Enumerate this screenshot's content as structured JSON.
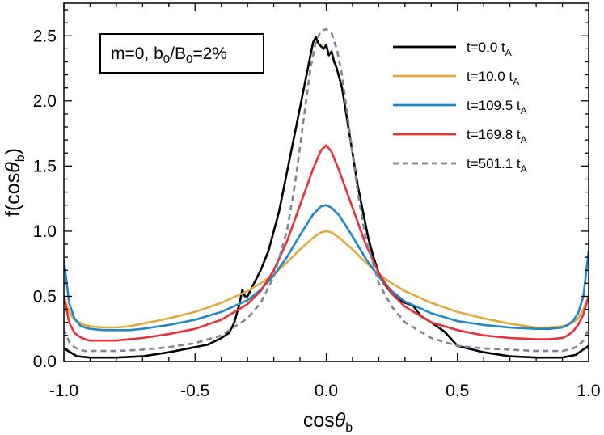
{
  "chart_data": {
    "type": "line",
    "title": "",
    "xlabel": {
      "base": "cos",
      "greek": "θ",
      "sub": "b"
    },
    "ylabel": {
      "pre": "f(cos",
      "greek": "θ",
      "sub": "b",
      "post": ")"
    },
    "xlim": [
      -1.0,
      1.0
    ],
    "ylim": [
      0.0,
      2.75
    ],
    "x_ticks": [
      {
        "value": -1.0,
        "label": "-1.0"
      },
      {
        "value": -0.5,
        "label": "-0.5"
      },
      {
        "value": 0.0,
        "label": "0.0"
      },
      {
        "value": 0.5,
        "label": "0.5"
      },
      {
        "value": 1.0,
        "label": "1.0"
      }
    ],
    "y_ticks": [
      {
        "value": 0.0,
        "label": "0.0"
      },
      {
        "value": 0.5,
        "label": "0.5"
      },
      {
        "value": 1.0,
        "label": "1.0"
      },
      {
        "value": 1.5,
        "label": "1.5"
      },
      {
        "value": 2.0,
        "label": "2.0"
      },
      {
        "value": 2.5,
        "label": "2.5"
      }
    ],
    "grid": false,
    "annotation": {
      "parts": [
        "m=0, b",
        "0",
        "/B",
        "0",
        "=2%"
      ]
    },
    "legend_position": "top-right",
    "series": [
      {
        "name": "t=0.0 t_A",
        "label": {
          "text": "t=0.0 t",
          "sub": "A"
        },
        "color": "#000000",
        "dash": "",
        "x": [
          -1.0,
          -0.95,
          -0.9,
          -0.8,
          -0.7,
          -0.6,
          -0.5,
          -0.45,
          -0.4,
          -0.37,
          -0.35,
          -0.33,
          -0.32,
          -0.31,
          -0.3,
          -0.28,
          -0.25,
          -0.22,
          -0.2,
          -0.18,
          -0.16,
          -0.14,
          -0.12,
          -0.1,
          -0.08,
          -0.06,
          -0.05,
          -0.04,
          -0.03,
          -0.02,
          -0.01,
          0.0,
          0.01,
          0.02,
          0.03,
          0.04,
          0.06,
          0.08,
          0.1,
          0.12,
          0.14,
          0.16,
          0.18,
          0.2,
          0.22,
          0.25,
          0.28,
          0.3,
          0.33,
          0.36,
          0.4,
          0.45,
          0.5,
          0.6,
          0.7,
          0.8,
          0.9,
          0.95,
          1.0
        ],
        "y": [
          0.1,
          0.04,
          0.03,
          0.03,
          0.04,
          0.07,
          0.11,
          0.13,
          0.18,
          0.22,
          0.3,
          0.45,
          0.55,
          0.5,
          0.5,
          0.58,
          0.7,
          0.85,
          1.0,
          1.15,
          1.35,
          1.55,
          1.75,
          1.95,
          2.15,
          2.35,
          2.45,
          2.49,
          2.44,
          2.42,
          2.4,
          2.43,
          2.35,
          2.38,
          2.3,
          2.25,
          2.1,
          1.85,
          1.6,
          1.35,
          1.15,
          0.95,
          0.8,
          0.68,
          0.6,
          0.52,
          0.47,
          0.45,
          0.43,
          0.35,
          0.3,
          0.23,
          0.12,
          0.07,
          0.04,
          0.03,
          0.03,
          0.05,
          0.12
        ]
      },
      {
        "name": "t=10.0 t_A",
        "label": {
          "text": "t=10.0 t",
          "sub": "A"
        },
        "color": "#E0AA3E",
        "dash": "",
        "x": [
          -1.0,
          -0.98,
          -0.96,
          -0.94,
          -0.92,
          -0.9,
          -0.85,
          -0.8,
          -0.75,
          -0.7,
          -0.6,
          -0.5,
          -0.4,
          -0.3,
          -0.25,
          -0.2,
          -0.15,
          -0.1,
          -0.05,
          -0.02,
          0.0,
          0.02,
          0.05,
          0.1,
          0.15,
          0.2,
          0.25,
          0.3,
          0.4,
          0.5,
          0.6,
          0.7,
          0.8,
          0.85,
          0.9,
          0.92,
          0.94,
          0.96,
          0.98,
          1.0
        ],
        "y": [
          0.5,
          0.38,
          0.32,
          0.3,
          0.28,
          0.27,
          0.26,
          0.26,
          0.27,
          0.29,
          0.33,
          0.38,
          0.45,
          0.54,
          0.6,
          0.67,
          0.76,
          0.86,
          0.95,
          0.99,
          1.0,
          0.99,
          0.95,
          0.86,
          0.76,
          0.67,
          0.6,
          0.54,
          0.45,
          0.38,
          0.33,
          0.29,
          0.26,
          0.26,
          0.27,
          0.28,
          0.3,
          0.33,
          0.4,
          0.5
        ]
      },
      {
        "name": "t=109.5 t_A",
        "label": {
          "text": "t=109.5 t",
          "sub": "A"
        },
        "color": "#1F86C7",
        "dash": "",
        "x": [
          -1.0,
          -0.98,
          -0.96,
          -0.94,
          -0.92,
          -0.9,
          -0.85,
          -0.8,
          -0.75,
          -0.7,
          -0.6,
          -0.5,
          -0.4,
          -0.3,
          -0.25,
          -0.2,
          -0.15,
          -0.1,
          -0.05,
          -0.02,
          0.0,
          0.02,
          0.05,
          0.1,
          0.15,
          0.2,
          0.25,
          0.3,
          0.4,
          0.5,
          0.6,
          0.7,
          0.8,
          0.85,
          0.9,
          0.92,
          0.94,
          0.96,
          0.98,
          1.0
        ],
        "y": [
          0.78,
          0.45,
          0.33,
          0.28,
          0.26,
          0.25,
          0.24,
          0.24,
          0.24,
          0.25,
          0.28,
          0.32,
          0.38,
          0.47,
          0.55,
          0.66,
          0.8,
          0.97,
          1.13,
          1.19,
          1.2,
          1.18,
          1.12,
          0.96,
          0.79,
          0.65,
          0.54,
          0.46,
          0.37,
          0.31,
          0.28,
          0.26,
          0.25,
          0.25,
          0.26,
          0.28,
          0.31,
          0.37,
          0.5,
          0.85
        ]
      },
      {
        "name": "t=169.8 t_A",
        "label": {
          "text": "t=169.8 t",
          "sub": "A"
        },
        "color": "#E8313A",
        "dash": "",
        "x": [
          -1.0,
          -0.98,
          -0.96,
          -0.94,
          -0.92,
          -0.9,
          -0.85,
          -0.8,
          -0.75,
          -0.7,
          -0.6,
          -0.5,
          -0.4,
          -0.3,
          -0.25,
          -0.2,
          -0.15,
          -0.1,
          -0.05,
          -0.02,
          0.0,
          0.02,
          0.05,
          0.1,
          0.15,
          0.2,
          0.25,
          0.3,
          0.4,
          0.5,
          0.6,
          0.7,
          0.8,
          0.85,
          0.9,
          0.92,
          0.94,
          0.96,
          0.98,
          1.0
        ],
        "y": [
          0.5,
          0.3,
          0.22,
          0.19,
          0.17,
          0.16,
          0.16,
          0.16,
          0.17,
          0.18,
          0.21,
          0.25,
          0.32,
          0.44,
          0.54,
          0.7,
          0.92,
          1.2,
          1.48,
          1.62,
          1.66,
          1.61,
          1.46,
          1.18,
          0.9,
          0.68,
          0.52,
          0.42,
          0.3,
          0.24,
          0.2,
          0.18,
          0.17,
          0.17,
          0.18,
          0.2,
          0.23,
          0.28,
          0.36,
          0.5
        ]
      },
      {
        "name": "t=501.1 t_A",
        "label": {
          "text": "t=501.1 t",
          "sub": "A"
        },
        "color": "#7E8399",
        "dash": "7,5",
        "x": [
          -1.0,
          -0.98,
          -0.96,
          -0.94,
          -0.92,
          -0.9,
          -0.85,
          -0.8,
          -0.7,
          -0.6,
          -0.5,
          -0.4,
          -0.3,
          -0.25,
          -0.2,
          -0.15,
          -0.12,
          -0.1,
          -0.08,
          -0.06,
          -0.04,
          -0.02,
          0.0,
          0.02,
          0.04,
          0.06,
          0.08,
          0.1,
          0.12,
          0.15,
          0.2,
          0.25,
          0.3,
          0.4,
          0.5,
          0.6,
          0.7,
          0.8,
          0.85,
          0.9,
          0.92,
          0.94,
          0.96,
          0.98,
          1.0
        ],
        "y": [
          0.25,
          0.15,
          0.11,
          0.09,
          0.08,
          0.08,
          0.08,
          0.08,
          0.09,
          0.11,
          0.14,
          0.2,
          0.33,
          0.45,
          0.65,
          1.0,
          1.35,
          1.65,
          1.95,
          2.25,
          2.45,
          2.54,
          2.55,
          2.52,
          2.4,
          2.2,
          1.9,
          1.6,
          1.3,
          0.95,
          0.6,
          0.42,
          0.3,
          0.18,
          0.12,
          0.1,
          0.09,
          0.08,
          0.08,
          0.08,
          0.09,
          0.1,
          0.12,
          0.16,
          0.25
        ]
      }
    ]
  }
}
